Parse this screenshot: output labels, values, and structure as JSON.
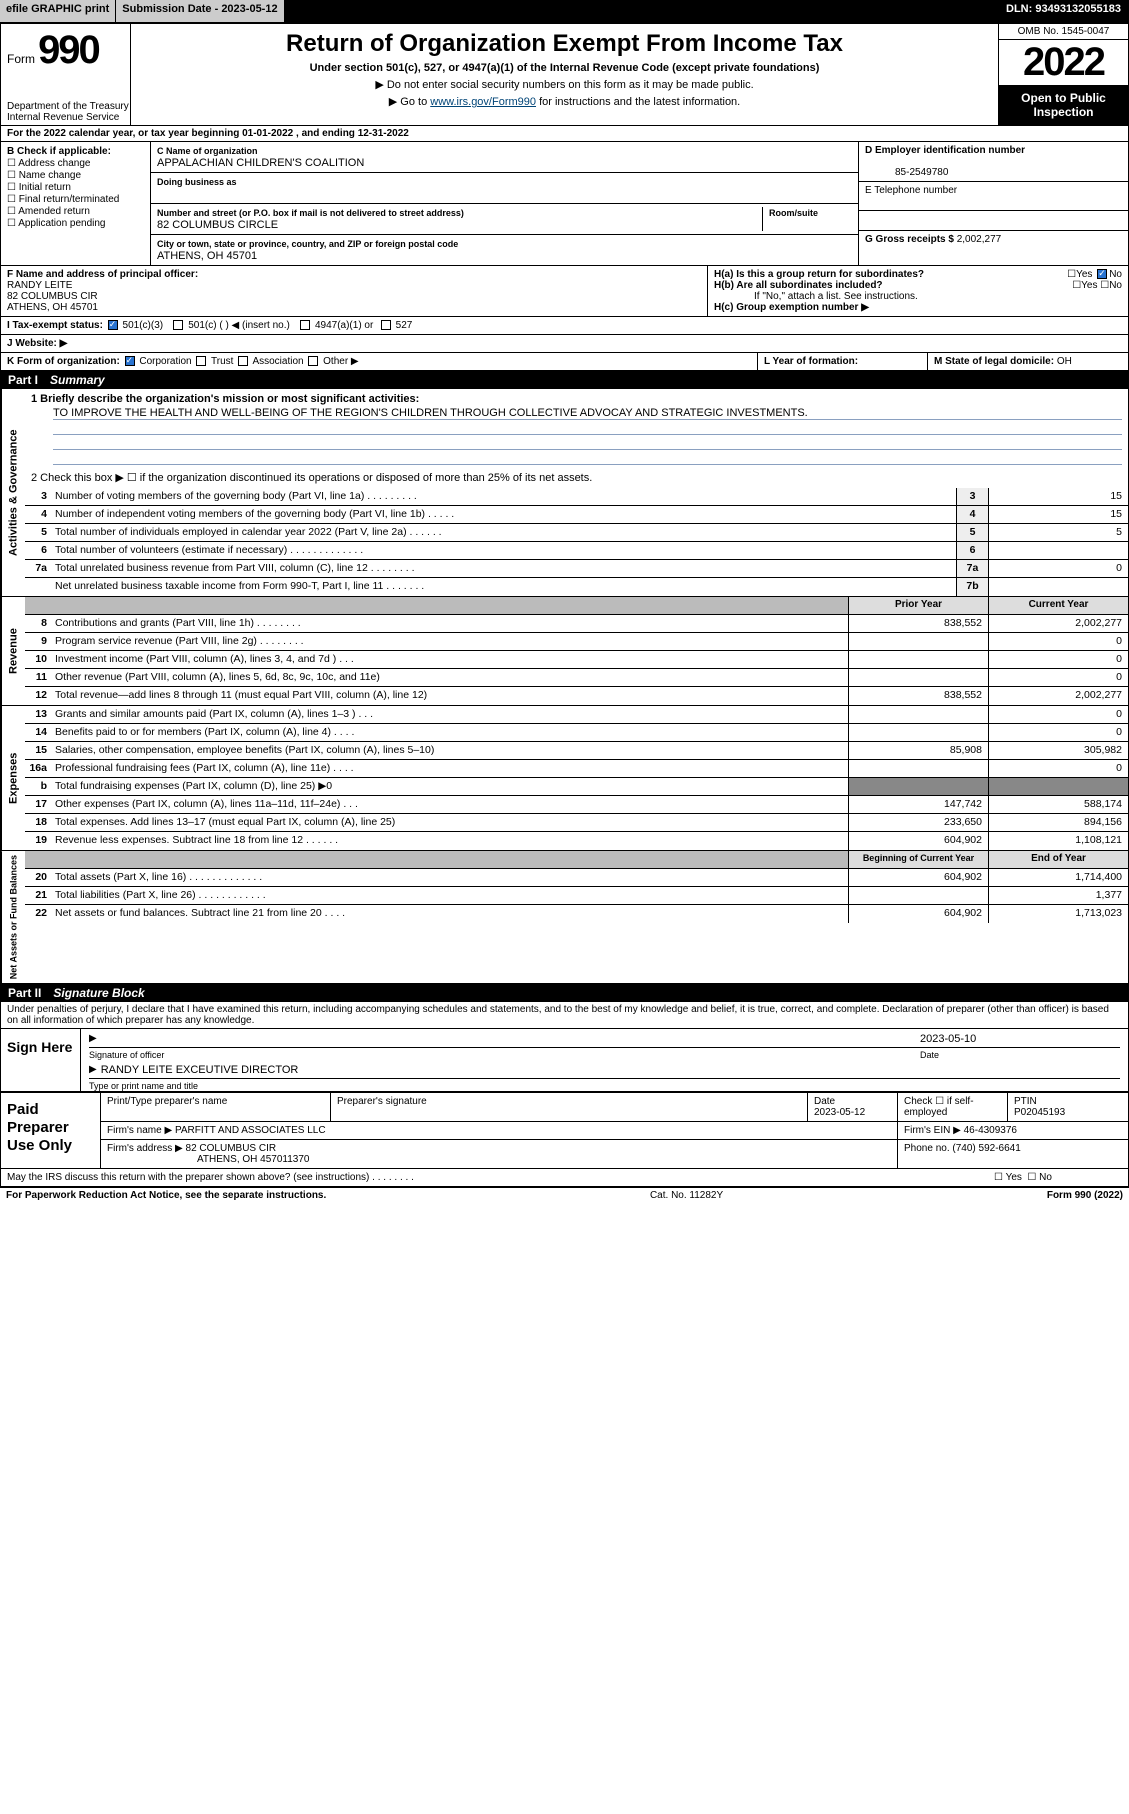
{
  "topbar": {
    "efile": "efile GRAPHIC print",
    "submission": "Submission Date - 2023-05-12",
    "dln": "DLN: 93493132055183"
  },
  "header": {
    "form_word": "Form",
    "form_num": "990",
    "dept": "Department of the Treasury\nInternal Revenue Service",
    "title": "Return of Organization Exempt From Income Tax",
    "subtitle": "Under section 501(c), 527, or 4947(a)(1) of the Internal Revenue Code (except private foundations)",
    "note1": "▶ Do not enter social security numbers on this form as it may be made public.",
    "note2_pre": "▶ Go to ",
    "note2_link": "www.irs.gov/Form990",
    "note2_post": " for instructions and the latest information.",
    "omb": "OMB No. 1545-0047",
    "year": "2022",
    "open": "Open to Public Inspection"
  },
  "period": "For the 2022 calendar year, or tax year beginning 01-01-2022   , and ending 12-31-2022",
  "boxB": {
    "title": "B Check if applicable:",
    "opts": [
      "Address change",
      "Name change",
      "Initial return",
      "Final return/terminated",
      "Amended return",
      "Application pending"
    ]
  },
  "boxC": {
    "name_label": "C Name of organization",
    "name": "APPALACHIAN CHILDREN'S COALITION",
    "dba_label": "Doing business as",
    "dba": "",
    "addr_label": "Number and street (or P.O. box if mail is not delivered to street address)",
    "room_label": "Room/suite",
    "addr": "82 COLUMBUS CIRCLE",
    "city_label": "City or town, state or province, country, and ZIP or foreign postal code",
    "city": "ATHENS, OH  45701"
  },
  "boxD": {
    "label": "D Employer identification number",
    "val": "85-2549780"
  },
  "boxE": {
    "label": "E Telephone number",
    "val": ""
  },
  "boxG": {
    "label": "G Gross receipts $",
    "val": "2,002,277"
  },
  "boxF": {
    "label": "F Name and address of principal officer:",
    "lines": [
      "RANDY LEITE",
      "82 COLUMBUS CIR",
      "ATHENS, OH  45701"
    ]
  },
  "boxH": {
    "a": "H(a)  Is this a group return for subordinates?",
    "a_no": true,
    "b": "H(b)  Are all subordinates included?",
    "b_note": "If \"No,\" attach a list. See instructions.",
    "c": "H(c)  Group exemption number ▶"
  },
  "boxI": {
    "label": "I   Tax-exempt status:",
    "opts": [
      "501(c)(3)",
      "501(c) (   ) ◀ (insert no.)",
      "4947(a)(1) or",
      "527"
    ],
    "checked": 0
  },
  "boxJ": {
    "label": "J   Website: ▶",
    "val": ""
  },
  "boxK": {
    "label": "K Form of organization:",
    "opts": [
      "Corporation",
      "Trust",
      "Association",
      "Other ▶"
    ],
    "checked": 0
  },
  "boxL": {
    "label": "L Year of formation:",
    "val": ""
  },
  "boxM": {
    "label": "M State of legal domicile:",
    "val": "OH"
  },
  "part1": {
    "num": "Part I",
    "title": "Summary"
  },
  "mission": {
    "q": "1   Briefly describe the organization's mission or most significant activities:",
    "text": "TO IMPROVE THE HEALTH AND WELL-BEING OF THE REGION'S CHILDREN THROUGH COLLECTIVE ADVOCAY AND STRATEGIC INVESTMENTS."
  },
  "line2": "2   Check this box ▶ ☐  if the organization discontinued its operations or disposed of more than 25% of its net assets.",
  "gov_lines": [
    {
      "n": "3",
      "t": "Number of voting members of the governing body (Part VI, line 1a)   .    .    .    .    .    .    .    .    .",
      "b": "3",
      "v": "15"
    },
    {
      "n": "4",
      "t": "Number of independent voting members of the governing body (Part VI, line 1b)  .    .    .    .    .",
      "b": "4",
      "v": "15"
    },
    {
      "n": "5",
      "t": "Total number of individuals employed in calendar year 2022 (Part V, line 2a)  .    .    .    .    .    .",
      "b": "5",
      "v": "5"
    },
    {
      "n": "6",
      "t": "Total number of volunteers (estimate if necessary)   .    .    .    .    .    .    .    .    .    .    .    .    .",
      "b": "6",
      "v": ""
    },
    {
      "n": "7a",
      "t": "Total unrelated business revenue from Part VIII, column (C), line 12  .    .    .    .    .    .    .    .",
      "b": "7a",
      "v": "0"
    },
    {
      "n": "",
      "t": "Net unrelated business taxable income from Form 990-T, Part I, line 11  .    .    .    .    .    .    .",
      "b": "7b",
      "v": ""
    }
  ],
  "col_hdrs": {
    "prior": "Prior Year",
    "current": "Current Year"
  },
  "revenue": [
    {
      "n": "8",
      "t": "Contributions and grants (Part VIII, line 1h)   .    .    .    .    .    .    .    .",
      "p": "838,552",
      "c": "2,002,277"
    },
    {
      "n": "9",
      "t": "Program service revenue (Part VIII, line 2g)   .    .    .    .    .    .    .    .",
      "p": "",
      "c": "0"
    },
    {
      "n": "10",
      "t": "Investment income (Part VIII, column (A), lines 3, 4, and 7d )   .    .    .",
      "p": "",
      "c": "0"
    },
    {
      "n": "11",
      "t": "Other revenue (Part VIII, column (A), lines 5, 6d, 8c, 9c, 10c, and 11e)",
      "p": "",
      "c": "0"
    },
    {
      "n": "12",
      "t": "Total revenue—add lines 8 through 11 (must equal Part VIII, column (A), line 12)",
      "p": "838,552",
      "c": "2,002,277"
    }
  ],
  "expenses": [
    {
      "n": "13",
      "t": "Grants and similar amounts paid (Part IX, column (A), lines 1–3 )   .    .    .",
      "p": "",
      "c": "0"
    },
    {
      "n": "14",
      "t": "Benefits paid to or for members (Part IX, column (A), line 4)   .    .    .    .",
      "p": "",
      "c": "0"
    },
    {
      "n": "15",
      "t": "Salaries, other compensation, employee benefits (Part IX, column (A), lines 5–10)",
      "p": "85,908",
      "c": "305,982"
    },
    {
      "n": "16a",
      "t": "Professional fundraising fees (Part IX, column (A), line 11e)   .    .    .    .",
      "p": "",
      "c": "0"
    },
    {
      "n": "b",
      "t": "Total fundraising expenses (Part IX, column (D), line 25) ▶0",
      "p": null,
      "c": null,
      "shade": true
    },
    {
      "n": "17",
      "t": "Other expenses (Part IX, column (A), lines 11a–11d, 11f–24e)  .    .    .",
      "p": "147,742",
      "c": "588,174"
    },
    {
      "n": "18",
      "t": "Total expenses. Add lines 13–17 (must equal Part IX, column (A), line 25)",
      "p": "233,650",
      "c": "894,156"
    },
    {
      "n": "19",
      "t": "Revenue less expenses. Subtract line 18 from line 12   .    .    .    .    .    .",
      "p": "604,902",
      "c": "1,108,121"
    }
  ],
  "net_hdrs": {
    "begin": "Beginning of Current Year",
    "end": "End of Year"
  },
  "net": [
    {
      "n": "20",
      "t": "Total assets (Part X, line 16)  .    .    .    .    .    .    .    .    .    .    .    .    .",
      "p": "604,902",
      "c": "1,714,400"
    },
    {
      "n": "21",
      "t": "Total liabilities (Part X, line 26)  .    .    .    .    .    .    .    .    .    .    .    .",
      "p": "",
      "c": "1,377"
    },
    {
      "n": "22",
      "t": "Net assets or fund balances. Subtract line 21 from line 20   .    .    .    .",
      "p": "604,902",
      "c": "1,713,023"
    }
  ],
  "part2": {
    "num": "Part II",
    "title": "Signature Block"
  },
  "declare": "Under penalties of perjury, I declare that I have examined this return, including accompanying schedules and statements, and to the best of my knowledge and belief, it is true, correct, and complete. Declaration of preparer (other than officer) is based on all information of which preparer has any knowledge.",
  "sign": {
    "here": "Sign Here",
    "sig_of": "Signature of officer",
    "date": "2023-05-10",
    "date_lbl": "Date",
    "name": "RANDY LEITE  EXCEUTIVE DIRECTOR",
    "name_lbl": "Type or print name and title"
  },
  "prep": {
    "title": "Paid Preparer Use Only",
    "hdr": [
      "Print/Type preparer's name",
      "Preparer's signature",
      "Date",
      "Check ☐ if self-employed",
      "PTIN"
    ],
    "row1": [
      "",
      "",
      "2023-05-12",
      "",
      "P02045193"
    ],
    "firm_name_lbl": "Firm's name    ▶",
    "firm_name": "PARFITT AND ASSOCIATES LLC",
    "firm_ein_lbl": "Firm's EIN ▶",
    "firm_ein": "46-4309376",
    "firm_addr_lbl": "Firm's address ▶",
    "firm_addr": "82 COLUMBUS CIR",
    "firm_addr2": "ATHENS, OH  457011370",
    "phone_lbl": "Phone no.",
    "phone": "(740) 592-6641"
  },
  "discuss": "May the IRS discuss this return with the preparer shown above? (see instructions)   .    .    .    .    .    .    .    .",
  "footer": {
    "l": "For Paperwork Reduction Act Notice, see the separate instructions.",
    "m": "Cat. No. 11282Y",
    "r": "Form 990 (2022)"
  },
  "vtabs": {
    "gov": "Activities & Governance",
    "rev": "Revenue",
    "exp": "Expenses",
    "net": "Net Assets or Fund Balances"
  }
}
